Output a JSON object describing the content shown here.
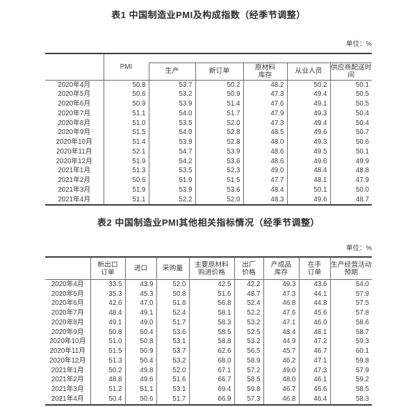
{
  "unit_label": "单位：%",
  "table1": {
    "title": "表1 中国制造业PMI及构成指数（经季节调整）",
    "header": {
      "pmi": "PMI",
      "sub": [
        [
          "生产"
        ],
        [
          "新订单"
        ],
        [
          "原材料",
          "库存"
        ],
        [
          "从业人员"
        ],
        [
          "供应商配送时",
          "间"
        ]
      ]
    },
    "rows": [
      {
        "month": "2020年4月",
        "values": [
          "50.8",
          "53.7",
          "50.2",
          "48.2",
          "50.2",
          "50.1"
        ]
      },
      {
        "month": "2020年5月",
        "values": [
          "50.6",
          "53.2",
          "50.9",
          "47.3",
          "49.4",
          "50.5"
        ]
      },
      {
        "month": "2020年6月",
        "values": [
          "50.9",
          "53.9",
          "51.4",
          "47.6",
          "49.1",
          "50.5"
        ]
      },
      {
        "month": "2020年7月",
        "values": [
          "51.1",
          "54.0",
          "51.7",
          "47.9",
          "49.3",
          "50.4"
        ]
      },
      {
        "month": "2020年8月",
        "values": [
          "51.0",
          "53.5",
          "52.0",
          "47.3",
          "49.4",
          "50.4"
        ]
      },
      {
        "month": "2020年9月",
        "values": [
          "51.5",
          "54.0",
          "52.8",
          "48.5",
          "49.6",
          "50.7"
        ]
      },
      {
        "month": "2020年10月",
        "values": [
          "51.4",
          "53.9",
          "52.8",
          "48.0",
          "49.3",
          "50.6"
        ]
      },
      {
        "month": "2020年11月",
        "values": [
          "52.1",
          "54.7",
          "53.9",
          "48.6",
          "49.5",
          "50.1"
        ]
      },
      {
        "month": "2020年12月",
        "values": [
          "51.9",
          "54.2",
          "53.6",
          "48.6",
          "49.6",
          "49.9"
        ]
      },
      {
        "month": "2021年1月",
        "values": [
          "51.3",
          "53.5",
          "52.3",
          "49.0",
          "48.4",
          "48.8"
        ]
      },
      {
        "month": "2021年2月",
        "values": [
          "50.6",
          "51.9",
          "51.5",
          "47.7",
          "48.1",
          "47.9"
        ]
      },
      {
        "month": "2021年3月",
        "values": [
          "51.9",
          "53.9",
          "53.6",
          "48.4",
          "50.1",
          "50.0"
        ]
      },
      {
        "month": "2021年4月",
        "values": [
          "51.1",
          "52.2",
          "52.0",
          "48.3",
          "49.6",
          "48.7"
        ]
      }
    ]
  },
  "table2": {
    "title": "表2 中国制造业PMI其他相关指标情况（经季节调整）",
    "header": [
      [
        "新出口",
        "订单"
      ],
      [
        "进口"
      ],
      [
        "采购量"
      ],
      [
        "主要原材料",
        "购进价格"
      ],
      [
        "出厂",
        "价格"
      ],
      [
        "产成品",
        "库存"
      ],
      [
        "在手",
        "订单"
      ],
      [
        "生产经营活动",
        "预期"
      ]
    ],
    "rows": [
      {
        "month": "2020年4月",
        "values": [
          "33.5",
          "43.9",
          "52.0",
          "42.5",
          "42.2",
          "49.3",
          "43.6",
          "54.0"
        ]
      },
      {
        "month": "2020年5月",
        "values": [
          "35.3",
          "45.3",
          "50.8",
          "51.6",
          "48.7",
          "47.3",
          "44.1",
          "57.9"
        ]
      },
      {
        "month": "2020年6月",
        "values": [
          "42.6",
          "47.0",
          "51.8",
          "56.8",
          "52.4",
          "46.8",
          "44.8",
          "57.5"
        ]
      },
      {
        "month": "2020年7月",
        "values": [
          "48.4",
          "49.1",
          "52.4",
          "58.1",
          "52.2",
          "47.6",
          "45.6",
          "57.8"
        ]
      },
      {
        "month": "2020年8月",
        "values": [
          "49.1",
          "49.0",
          "51.7",
          "58.3",
          "53.2",
          "47.1",
          "46.0",
          "58.6"
        ]
      },
      {
        "month": "2020年9月",
        "values": [
          "50.8",
          "50.4",
          "53.6",
          "58.5",
          "52.5",
          "48.4",
          "46.1",
          "58.7"
        ]
      },
      {
        "month": "2020年10月",
        "values": [
          "51.0",
          "50.8",
          "53.1",
          "58.8",
          "53.2",
          "44.9",
          "47.2",
          "59.3"
        ]
      },
      {
        "month": "2020年11月",
        "values": [
          "51.5",
          "50.9",
          "53.7",
          "62.6",
          "56.5",
          "45.7",
          "46.7",
          "60.1"
        ]
      },
      {
        "month": "2020年12月",
        "values": [
          "51.3",
          "50.4",
          "53.2",
          "68.0",
          "58.9",
          "46.2",
          "47.1",
          "59.8"
        ]
      },
      {
        "month": "2021年1月",
        "values": [
          "50.2",
          "49.8",
          "52.0",
          "67.1",
          "57.2",
          "49.0",
          "47.3",
          "57.9"
        ]
      },
      {
        "month": "2021年2月",
        "values": [
          "48.8",
          "49.6",
          "51.6",
          "66.7",
          "58.5",
          "48.0",
          "46.1",
          "59.2"
        ]
      },
      {
        "month": "2021年3月",
        "values": [
          "51.2",
          "51.1",
          "53.1",
          "69.4",
          "59.8",
          "46.7",
          "46.6",
          "58.5"
        ]
      },
      {
        "month": "2021年4月",
        "values": [
          "50.4",
          "50.6",
          "51.7",
          "66.9",
          "57.3",
          "46.8",
          "46.4",
          "58.3"
        ]
      }
    ]
  }
}
